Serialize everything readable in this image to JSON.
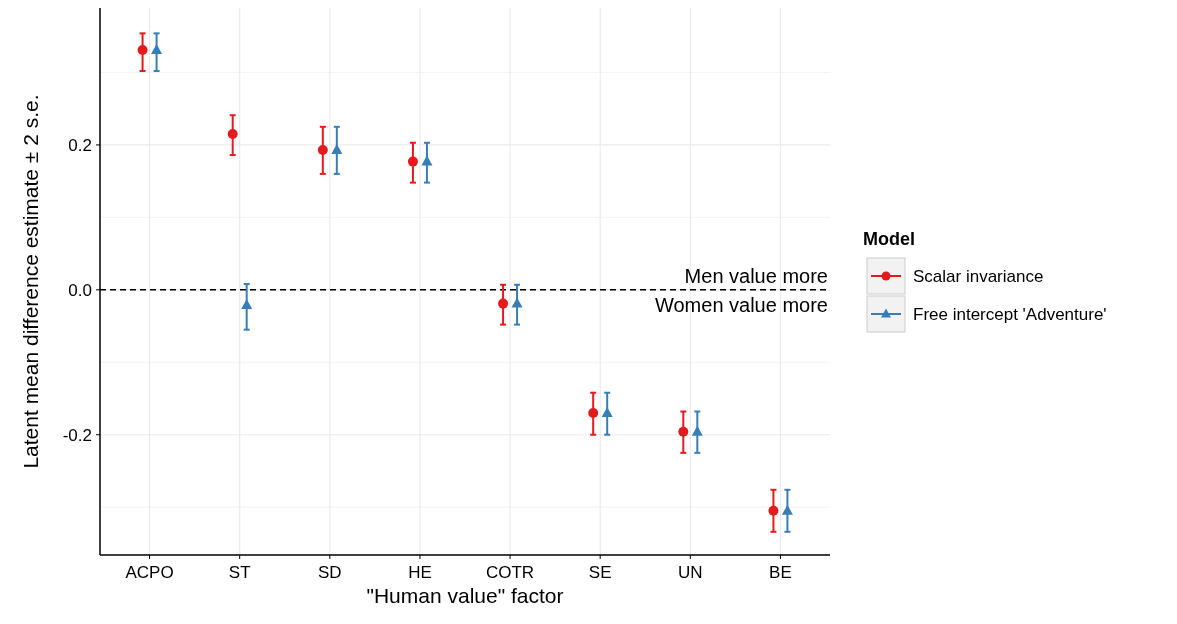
{
  "chart_data": {
    "type": "scatter",
    "xlabel": "\"Human value\" factor",
    "ylabel": "Latent mean difference estimate ± 2 s.e.",
    "legend_title": "Model",
    "categories": [
      "ACPO",
      "ST",
      "SD",
      "HE",
      "COTR",
      "SE",
      "UN",
      "BE"
    ],
    "series": [
      {
        "name": "Scalar invariance",
        "color": "#e41a1c",
        "marker": "circle",
        "values": [
          0.331,
          0.215,
          0.193,
          0.177,
          -0.019,
          -0.17,
          -0.196,
          -0.305
        ],
        "errors": [
          [
            0.302,
            0.354
          ],
          [
            0.186,
            0.241
          ],
          [
            0.16,
            0.225
          ],
          [
            0.148,
            0.203
          ],
          [
            -0.048,
            0.007
          ],
          [
            -0.2,
            -0.142
          ],
          [
            -0.225,
            -0.168
          ],
          [
            -0.334,
            -0.276
          ]
        ]
      },
      {
        "name": "Free intercept 'Adventure'",
        "color": "#377eb8",
        "marker": "triangle",
        "values": [
          0.331,
          -0.021,
          0.193,
          0.177,
          -0.019,
          -0.17,
          -0.196,
          -0.305
        ],
        "errors": [
          [
            0.302,
            0.354
          ],
          [
            -0.055,
            0.008
          ],
          [
            0.16,
            0.225
          ],
          [
            0.148,
            0.203
          ],
          [
            -0.048,
            0.007
          ],
          [
            -0.2,
            -0.142
          ],
          [
            -0.225,
            -0.168
          ],
          [
            -0.334,
            -0.276
          ]
        ]
      }
    ],
    "ylim": [
      -0.366,
      0.389
    ],
    "yticks": [
      {
        "value": -0.3,
        "label": null
      },
      {
        "value": -0.2,
        "label": "-0.2"
      },
      {
        "value": -0.1,
        "label": null
      },
      {
        "value": 0,
        "label": "0.0"
      },
      {
        "value": 0.1,
        "label": null
      },
      {
        "value": 0.2,
        "label": "0.2"
      },
      {
        "value": 0.3,
        "label": null
      }
    ],
    "grid": true,
    "legend": "right",
    "ref_lines": [
      {
        "axis": "y",
        "value": 0,
        "label": "Men value more",
        "line_style": "dashed",
        "color": "#000000"
      }
    ],
    "annotations": [
      {
        "text": "Women value more",
        "y": 0
      }
    ]
  }
}
